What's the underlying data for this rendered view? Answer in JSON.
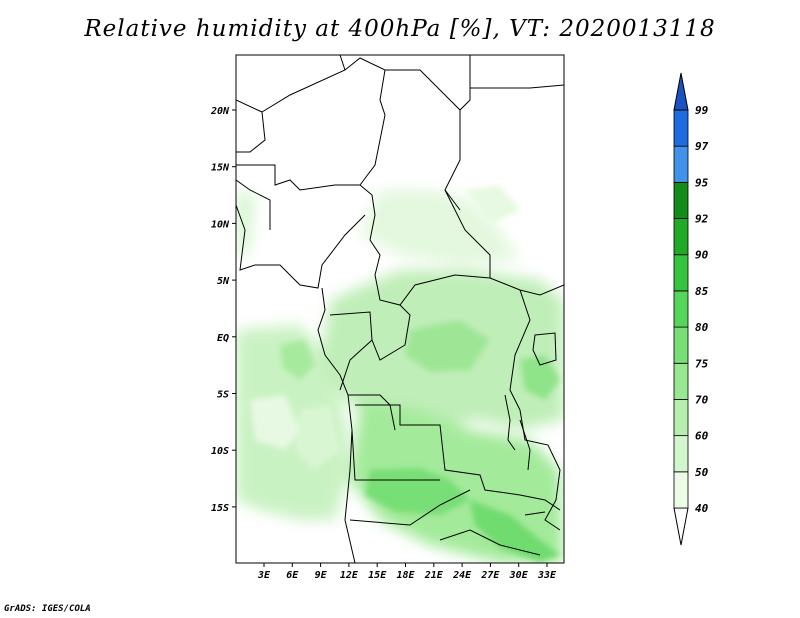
{
  "title": "Relative humidity at 400hPa [%], VT: 2020013118",
  "credit": "GrADS: IGES/COLA",
  "map": {
    "lat_labels": [
      "20N",
      "15N",
      "10N",
      "5N",
      "EQ",
      "5S",
      "10S",
      "15S"
    ],
    "lon_labels": [
      "3E",
      "6E",
      "9E",
      "12E",
      "15E",
      "18E",
      "21E",
      "24E",
      "27E",
      "30E",
      "33E"
    ],
    "land_color": "#ffffff",
    "border_color": "#000000"
  },
  "colorbar": {
    "labels": [
      "40",
      "50",
      "60",
      "70",
      "75",
      "80",
      "85",
      "90",
      "92",
      "95",
      "97",
      "99"
    ],
    "colors": [
      "#ffffff",
      "#ebfbe6",
      "#d3f5cd",
      "#b6efad",
      "#98e791",
      "#78de76",
      "#55d65a",
      "#35c43f",
      "#21a928",
      "#138c19",
      "#4193ea",
      "#1e6de0",
      "#1b52c3"
    ]
  }
}
